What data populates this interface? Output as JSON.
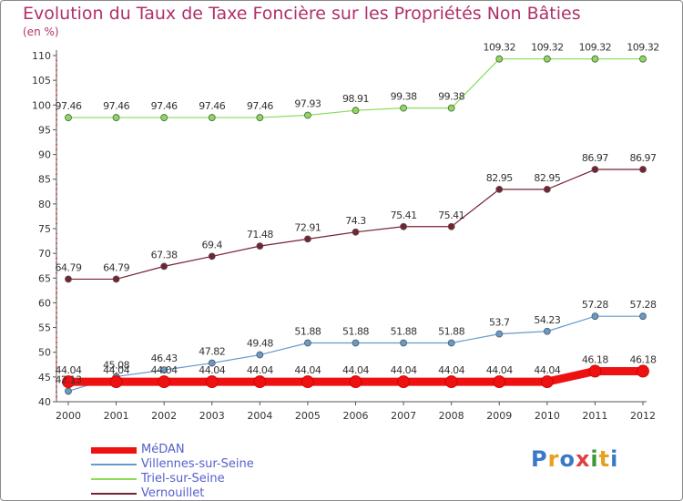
{
  "title": "Evolution du Taux de Taxe Foncière sur les Propriétés Non Bâties",
  "unit_label": "(en %)",
  "logo": {
    "letters": [
      "P",
      "r",
      "o",
      "x",
      "i",
      "t",
      "i"
    ],
    "colors": [
      "#3a78c8",
      "#e8a020",
      "#3a78c8",
      "#e04040",
      "#3a9a3a",
      "#e8a020",
      "#3a78c8"
    ]
  },
  "chart_data": {
    "type": "line",
    "title": "Evolution du Taux de Taxe Foncière sur les Propriétés Non Bâties",
    "ylabel": "(en %)",
    "x": [
      "2000",
      "2001",
      "2002",
      "2003",
      "2004",
      "2005",
      "2006",
      "2007",
      "2008",
      "2009",
      "2010",
      "2011",
      "2012"
    ],
    "ylim": [
      40,
      110
    ],
    "yticks": [
      "40",
      "45",
      "50",
      "55",
      "60",
      "65",
      "70",
      "75",
      "80",
      "85",
      "90",
      "95",
      "100",
      "105",
      "110"
    ],
    "grid": false,
    "legend_position": "bottom-left",
    "series": [
      {
        "name": "MéDAN",
        "color": "#ee1111",
        "labels": [
          "44.04",
          "44.04",
          "44.04",
          "44.04",
          "44.04",
          "44.04",
          "44.04",
          "44.04",
          "44.04",
          "44.04",
          "44.04",
          "46.18",
          "46.18"
        ],
        "values": [
          44.04,
          44.04,
          44.04,
          44.04,
          44.04,
          44.04,
          44.04,
          44.04,
          44.04,
          44.04,
          44.04,
          46.18,
          46.18
        ]
      },
      {
        "name": "Villennes-sur-Seine",
        "color": "#6699cc",
        "labels": [
          "42.13",
          "45.08",
          "46.43",
          "47.82",
          "49.48",
          "51.88",
          "51.88",
          "51.88",
          "51.88",
          "53.7",
          "54.23",
          "57.28",
          "57.28"
        ],
        "values": [
          42.13,
          45.08,
          46.43,
          47.82,
          49.48,
          51.88,
          51.88,
          51.88,
          51.88,
          53.7,
          54.23,
          57.28,
          57.28
        ]
      },
      {
        "name": "Triel-sur-Seine",
        "color": "#88dd55",
        "labels": [
          "97.46",
          "97.46",
          "97.46",
          "97.46",
          "97.46",
          "97.93",
          "98.91",
          "99.38",
          "99.38",
          "109.32",
          "109.32",
          "109.32",
          "109.32"
        ],
        "values": [
          97.46,
          97.46,
          97.46,
          97.46,
          97.46,
          97.93,
          98.91,
          99.38,
          99.38,
          109.32,
          109.32,
          109.32,
          109.32
        ]
      },
      {
        "name": "Vernouillet",
        "color": "#772233",
        "labels": [
          "64.79",
          "64.79",
          "67.38",
          "69.4",
          "71.48",
          "72.91",
          "74.3",
          "75.41",
          "75.41",
          "82.95",
          "82.95",
          "86.97",
          "86.97"
        ],
        "values": [
          64.79,
          64.79,
          67.38,
          69.4,
          71.48,
          72.91,
          74.3,
          75.41,
          75.41,
          82.95,
          82.95,
          86.97,
          86.97
        ]
      }
    ]
  }
}
